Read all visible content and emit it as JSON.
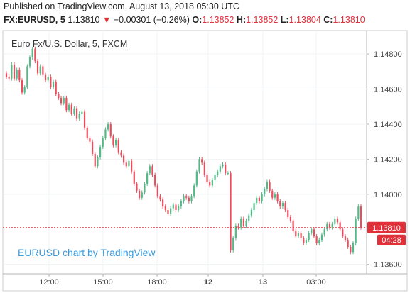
{
  "header": {
    "published": "Published on TradingView.com, August 13, 2018 05:30 UTC"
  },
  "quote": {
    "symbol": "FX:EURUSD, 5",
    "last": "1.13810",
    "change": "−0.00301 (−0.26%)",
    "open_label": "O:",
    "open": "1.13852",
    "high_label": "H:",
    "high": "1.13852",
    "low_label": "L:",
    "low": "1.13804",
    "close_label": "C:",
    "close": "1.13810",
    "down_color": "#e0303a"
  },
  "chart_title": "Euro Fx/U.S. Dollar, 5, FXCM",
  "watermark": "EURUSD chart by TradingView",
  "last_price_tag": "1.13810",
  "countdown_tag": "04:28",
  "colors": {
    "up": "#53b987",
    "down": "#eb4d5c",
    "last_price_line": "#e0303a",
    "countdown_bg": "#e0303a",
    "watermark": "#3a9adb"
  },
  "chart_data": {
    "type": "candlestick",
    "title": "Euro Fx/U.S. Dollar, 5, FXCM",
    "ylim": [
      1.1355,
      1.1493
    ],
    "y_ticks": [
      "1.14800",
      "1.14600",
      "1.14400",
      "1.14200",
      "1.14000",
      "1.13600"
    ],
    "x_ticks": [
      "12:00",
      "15:00",
      "18:00",
      "12",
      "13",
      "03:00"
    ],
    "last_price": 1.1381,
    "closes": [
      1.1467,
      1.1466,
      1.1474,
      1.1466,
      1.1471,
      1.1465,
      1.1458,
      1.1461,
      1.1473,
      1.1478,
      1.1483,
      1.1476,
      1.1469,
      1.1473,
      1.1468,
      1.1465,
      1.1467,
      1.1461,
      1.1464,
      1.1457,
      1.1455,
      1.1452,
      1.1455,
      1.1448,
      1.1451,
      1.1446,
      1.1449,
      1.1443,
      1.1446,
      1.1447,
      1.1438,
      1.1432,
      1.143,
      1.1423,
      1.1416,
      1.1421,
      1.1427,
      1.1432,
      1.1437,
      1.144,
      1.1433,
      1.1428,
      1.1431,
      1.1424,
      1.1422,
      1.1418,
      1.1416,
      1.1419,
      1.1413,
      1.1406,
      1.1402,
      1.1398,
      1.1401,
      1.1406,
      1.1412,
      1.1416,
      1.1411,
      1.1405,
      1.1399,
      1.1397,
      1.1393,
      1.1391,
      1.1389,
      1.1392,
      1.1394,
      1.1391,
      1.1393,
      1.1396,
      1.1399,
      1.1398,
      1.1396,
      1.1399,
      1.1405,
      1.1413,
      1.142,
      1.1418,
      1.1411,
      1.1407,
      1.1405,
      1.1408,
      1.1411,
      1.1413,
      1.1416,
      1.1417,
      1.1412,
      1.1412,
      1.1368,
      1.1375,
      1.1382,
      1.1381,
      1.1386,
      1.1382,
      1.1385,
      1.1388,
      1.1391,
      1.1395,
      1.1398,
      1.1396,
      1.14,
      1.1403,
      1.1407,
      1.1402,
      1.1398,
      1.14,
      1.1396,
      1.1393,
      1.1395,
      1.1391,
      1.1387,
      1.1385,
      1.1379,
      1.1376,
      1.1378,
      1.1375,
      1.1372,
      1.1374,
      1.1378,
      1.138,
      1.1376,
      1.1372,
      1.1374,
      1.1377,
      1.138,
      1.1383,
      1.1381,
      1.1383,
      1.1386,
      1.1384,
      1.138,
      1.1376,
      1.1374,
      1.137,
      1.1367,
      1.1372,
      1.1386,
      1.1393,
      1.1381
    ]
  }
}
